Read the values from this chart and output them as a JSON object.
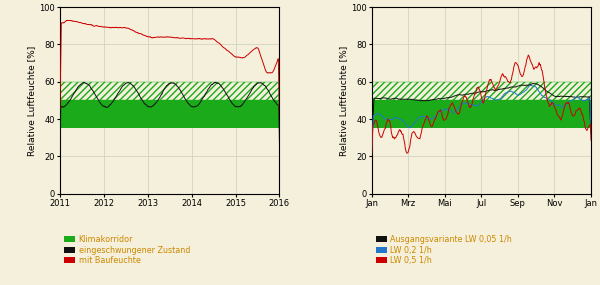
{
  "fig_bg": "#f5f0dc",
  "plot_bg": "#f5f0dc",
  "ylim": [
    0,
    100
  ],
  "yticks": [
    0,
    20,
    40,
    60,
    80,
    100
  ],
  "ylabel": "Relative Luftfeuchte [%]",
  "green_solid_low": 35,
  "green_solid_high": 50,
  "green_hatch_low": 50,
  "green_hatch_high": 60,
  "green_color": "#1aaa1a",
  "left_xticks": [
    0,
    1,
    2,
    3,
    4,
    5
  ],
  "left_xticklabels": [
    "2011",
    "2012",
    "2013",
    "2014",
    "2015",
    "2016"
  ],
  "left_xlim": [
    0,
    5
  ],
  "right_xticklabels": [
    "Jan",
    "Mrz",
    "Mai",
    "Jul",
    "Sep",
    "Nov",
    "Jan"
  ],
  "legend1": [
    "Klimakorridor",
    "eingeschwungener Zustand",
    "mit Baufeuchte"
  ],
  "legend2": [
    "Ausgangsvariante LW 0,05 1/h",
    "LW 0,2 1/h",
    "LW 0,5 1/h"
  ],
  "black_color": "#111111",
  "red_color": "#cc0000",
  "blue_color": "#2277cc",
  "legend_text_color": "#cc8800",
  "grid_color": "#ccccbb",
  "line_lw": 0.7
}
